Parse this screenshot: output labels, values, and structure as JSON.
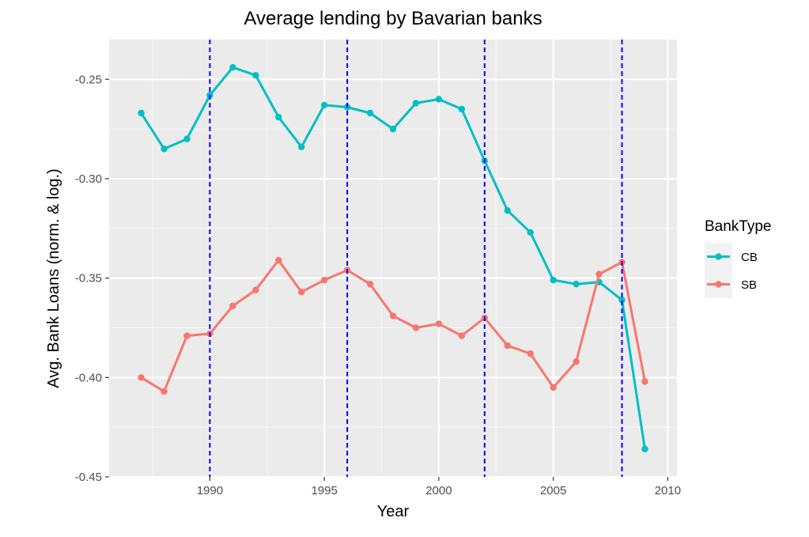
{
  "chart_data": {
    "type": "line",
    "title": "Average lending by Bavarian banks",
    "xlabel": "Year",
    "ylabel": "Avg. Bank Loans (norm. & log.)",
    "xlim": [
      1985.6,
      2010.4
    ],
    "ylim": [
      -0.45,
      -0.23
    ],
    "x_ticks": [
      1990,
      1995,
      2000,
      2005,
      2010
    ],
    "y_ticks": [
      -0.45,
      -0.4,
      -0.35,
      -0.3,
      -0.25
    ],
    "x_tick_labels": [
      "1990",
      "1995",
      "2000",
      "2005",
      "2010"
    ],
    "y_tick_labels": [
      "-0.45",
      "-0.40",
      "-0.35",
      "-0.30",
      "-0.25"
    ],
    "grid": true,
    "legend": {
      "title": "BankType",
      "position": "right"
    },
    "vlines": [
      1990,
      1996,
      2002,
      2008
    ],
    "vline_color": "#0000ff",
    "x": [
      1987,
      1988,
      1989,
      1990,
      1991,
      1992,
      1993,
      1994,
      1995,
      1996,
      1997,
      1998,
      1999,
      2000,
      2001,
      2002,
      2003,
      2004,
      2005,
      2006,
      2007,
      2008,
      2009
    ],
    "series": [
      {
        "name": "CB",
        "color": "#00bfc4",
        "values": [
          -0.267,
          -0.285,
          -0.28,
          -0.258,
          -0.244,
          -0.248,
          -0.269,
          -0.284,
          -0.263,
          -0.264,
          -0.267,
          -0.275,
          -0.262,
          -0.26,
          -0.265,
          -0.291,
          -0.316,
          -0.327,
          -0.351,
          -0.353,
          -0.352,
          -0.361,
          -0.436
        ]
      },
      {
        "name": "SB",
        "color": "#f8766d",
        "values": [
          -0.4,
          -0.407,
          -0.379,
          -0.378,
          -0.364,
          -0.356,
          -0.341,
          -0.357,
          -0.351,
          -0.346,
          -0.353,
          -0.369,
          -0.375,
          -0.373,
          -0.379,
          -0.37,
          -0.384,
          -0.388,
          -0.405,
          -0.392,
          -0.348,
          -0.342,
          -0.402
        ]
      }
    ]
  }
}
